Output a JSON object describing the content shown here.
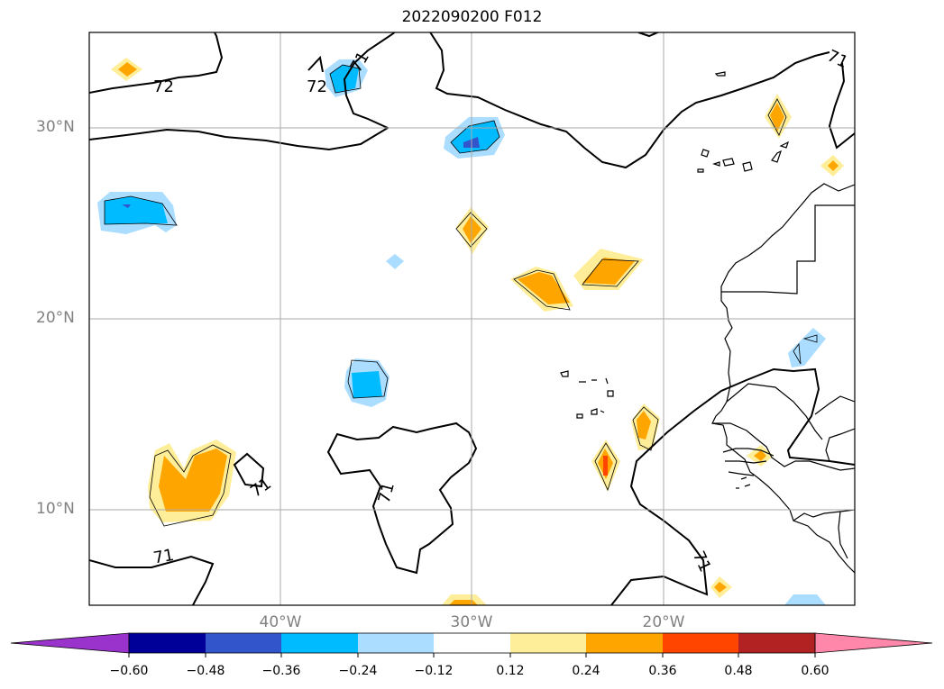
{
  "title": "2022090200 F012",
  "map": {
    "projection": "lat-lon",
    "lon_range": [
      -50,
      -10
    ],
    "lat_range": [
      5,
      35
    ],
    "gridlines": true,
    "lat_ticks": [
      {
        "lat": 30,
        "label": "30°N"
      },
      {
        "lat": 20,
        "label": "20°N"
      },
      {
        "lat": 10,
        "label": "10°N"
      }
    ],
    "lon_ticks": [
      {
        "lon": -40,
        "label": "40°W"
      },
      {
        "lon": -30,
        "label": "30°W"
      },
      {
        "lon": -20,
        "label": "20°W"
      }
    ],
    "contour_labels": [
      "72",
      "72",
      "71",
      "71",
      "71",
      "71",
      "71"
    ]
  },
  "colorbar": {
    "levels": [
      "−0.60",
      "−0.48",
      "−0.36",
      "−0.24",
      "−0.12",
      "0.12",
      "0.24",
      "0.36",
      "0.48",
      "0.60"
    ],
    "colors": {
      "under": "#9933cc",
      "bands": [
        "#000099",
        "#3355cc",
        "#00bbff",
        "#aaddff",
        "#ffffff",
        "#ffee99",
        "#ffa500",
        "#ff4500",
        "#b22222"
      ],
      "over": "#ff88aa"
    }
  }
}
